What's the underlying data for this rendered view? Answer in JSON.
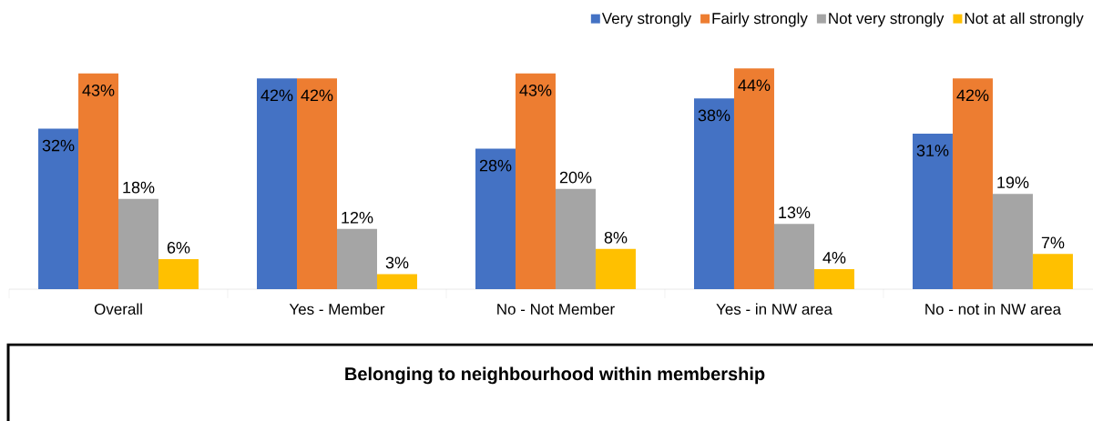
{
  "chart_data": {
    "type": "bar",
    "title": "Belonging to neighbourhood within membership",
    "categories": [
      "Overall",
      "Yes - Member",
      "No - Not Member",
      "Yes - in NW area",
      "No - not in NW area"
    ],
    "series": [
      {
        "name": "Very strongly",
        "color": "#4472c4",
        "values": [
          32,
          42,
          28,
          38,
          31
        ],
        "value_labels": [
          "32%",
          "42%",
          "28%",
          "38%",
          "31%"
        ]
      },
      {
        "name": "Fairly strongly",
        "color": "#ed7d31",
        "values": [
          43,
          42,
          43,
          44,
          42
        ],
        "value_labels": [
          "43%",
          "42%",
          "43%",
          "44%",
          "42%"
        ]
      },
      {
        "name": "Not very strongly",
        "color": "#a5a5a5",
        "values": [
          18,
          12,
          20,
          13,
          19
        ],
        "value_labels": [
          "18%",
          "12%",
          "20%",
          "13%",
          "19%"
        ]
      },
      {
        "name": "Not at all strongly",
        "color": "#ffc000",
        "values": [
          6,
          3,
          8,
          4,
          7
        ],
        "value_labels": [
          "6%",
          "3%",
          "8%",
          "4%",
          "7%"
        ]
      }
    ],
    "legend": "top right"
  }
}
